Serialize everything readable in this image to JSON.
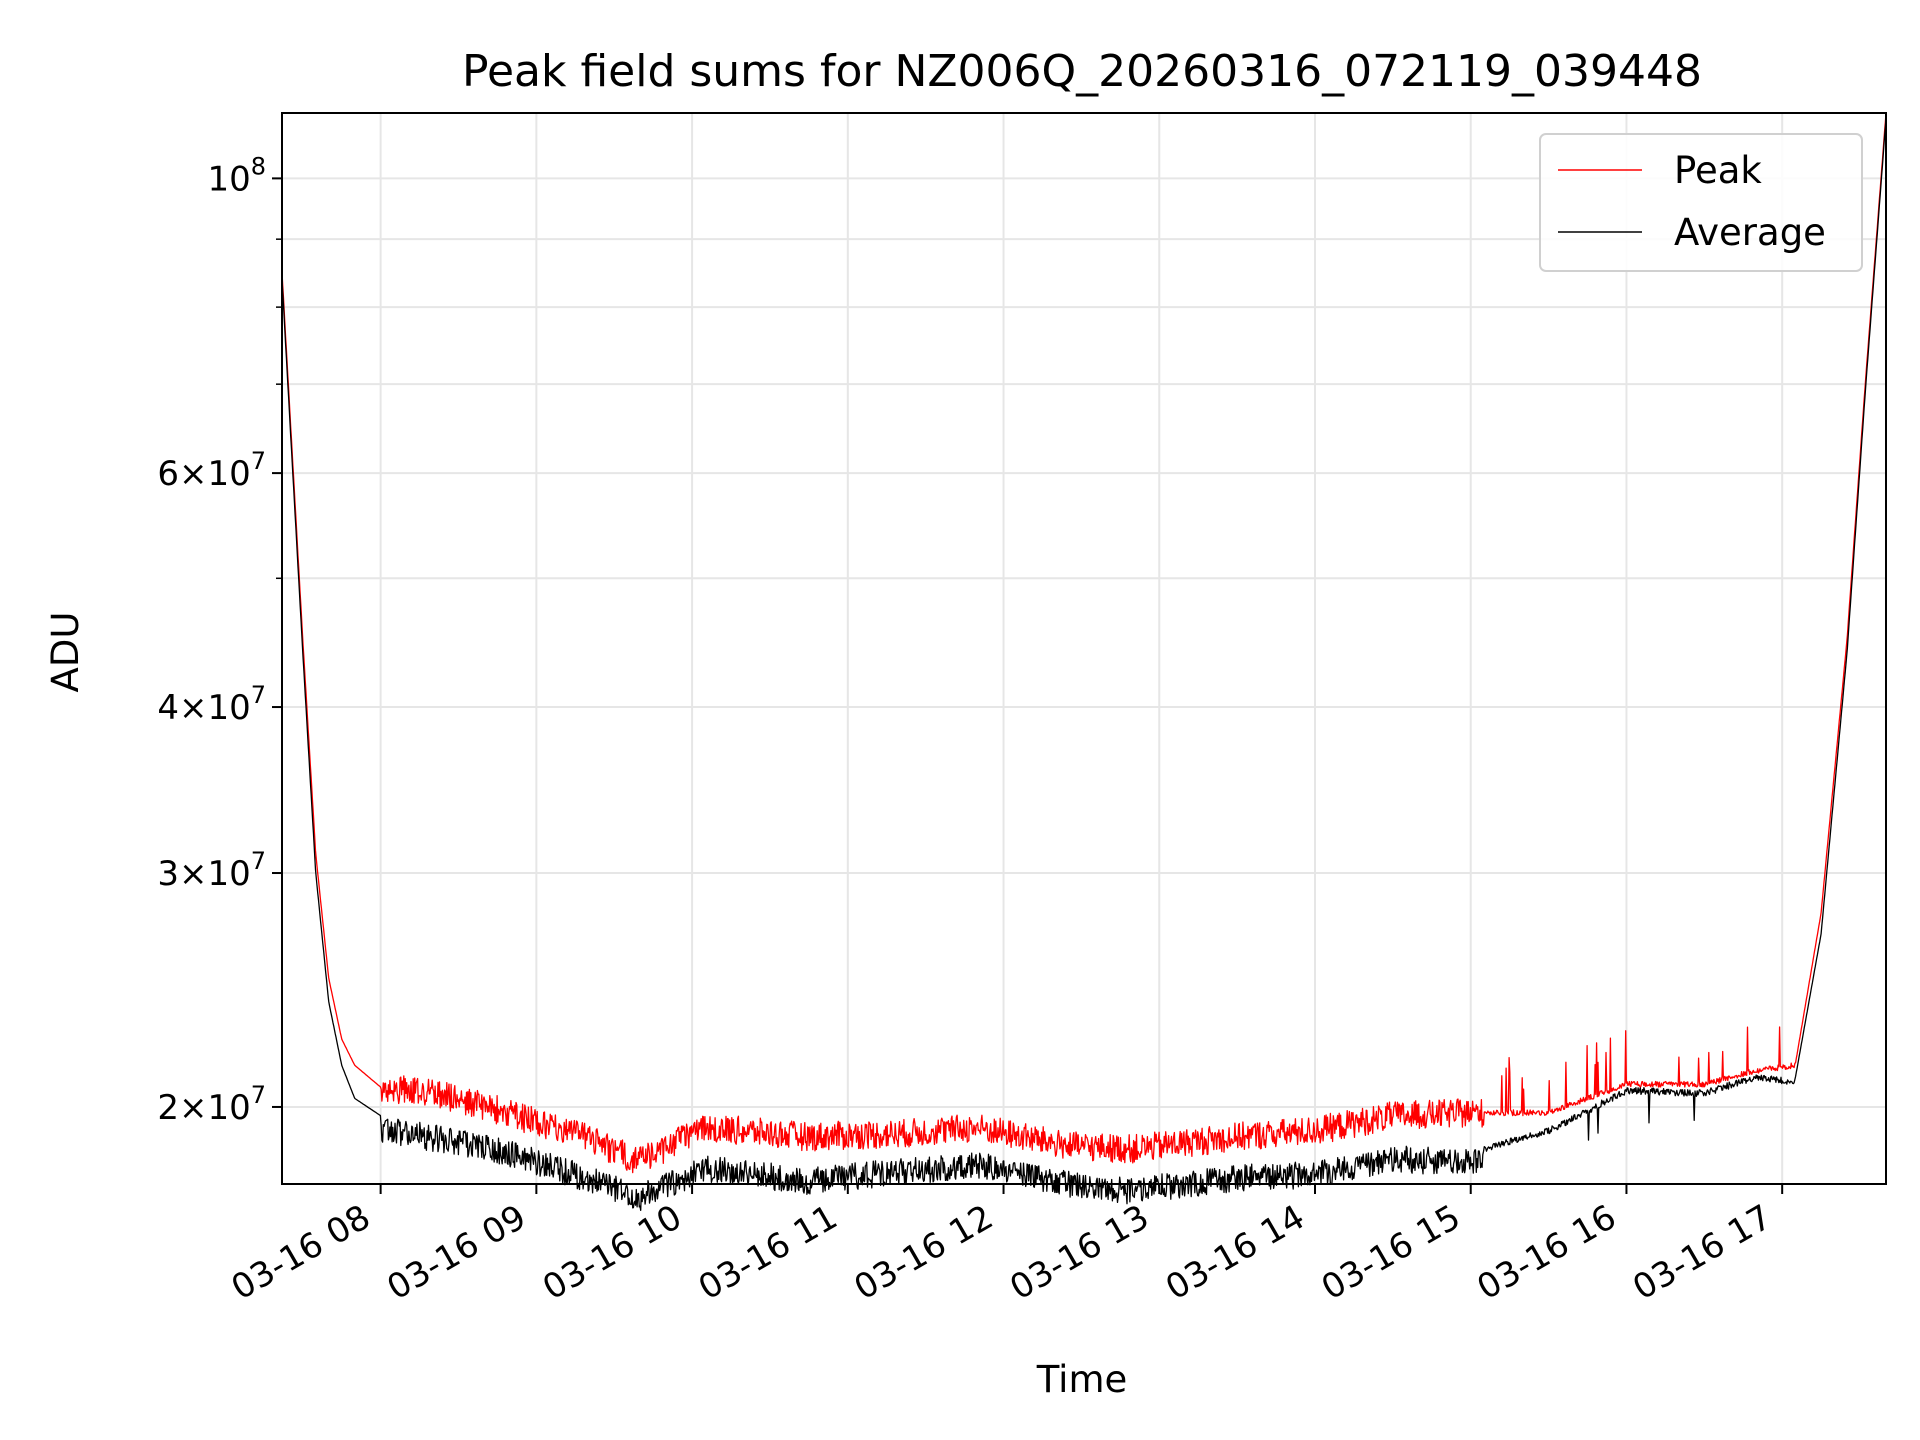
{
  "chart_data": {
    "type": "line",
    "title": "Peak field sums for NZ006Q_20260316_072119_039448",
    "xlabel": "Time",
    "ylabel": "ADU",
    "yscale": "log",
    "ylim": [
      17500000,
      112000000
    ],
    "xlim": [
      "2026-03-16 07:22",
      "2026-03-16 17:40"
    ],
    "grid": true,
    "legend": {
      "placement": "upper right",
      "entries": [
        "Peak",
        "Average"
      ]
    },
    "x_ticks": [
      "03-16 08",
      "03-16 09",
      "03-16 10",
      "03-16 11",
      "03-16 12",
      "03-16 13",
      "03-16 14",
      "03-16 15",
      "03-16 16",
      "03-16 17"
    ],
    "y_ticks": [
      {
        "value": 20000000,
        "mantissa": "2",
        "exp": "7"
      },
      {
        "value": 30000000,
        "mantissa": "3",
        "exp": "7"
      },
      {
        "value": 40000000,
        "mantissa": "4",
        "exp": "7"
      },
      {
        "value": 60000000,
        "mantissa": "6",
        "exp": "7"
      },
      {
        "value": 100000000,
        "mantissa": "",
        "exp": "8"
      }
    ],
    "y_minor_ticks": [
      50000000,
      70000000,
      80000000,
      90000000
    ],
    "series": [
      {
        "name": "Peak",
        "color": "#ff0000",
        "x": [
          "2026-03-16 07:22",
          "2026-03-16 07:30",
          "2026-03-16 07:35",
          "2026-03-16 07:40",
          "2026-03-16 07:45",
          "2026-03-16 07:50",
          "2026-03-16 08:00",
          "2026-03-16 08:20",
          "2026-03-16 08:45",
          "2026-03-16 09:15",
          "2026-03-16 09:40",
          "2026-03-16 10:05",
          "2026-03-16 10:45",
          "2026-03-16 11:20",
          "2026-03-16 11:50",
          "2026-03-16 12:25",
          "2026-03-16 12:50",
          "2026-03-16 13:30",
          "2026-03-16 14:00",
          "2026-03-16 14:30",
          "2026-03-16 15:00",
          "2026-03-16 15:30",
          "2026-03-16 16:00",
          "2026-03-16 16:30",
          "2026-03-16 16:50",
          "2026-03-16 17:05",
          "2026-03-16 17:15",
          "2026-03-16 17:25",
          "2026-03-16 17:32",
          "2026-03-16 17:40"
        ],
        "y": [
          85000000,
          45000000,
          31000000,
          25000000,
          22500000,
          21500000,
          20700000,
          20500000,
          19900000,
          19100000,
          18200000,
          19300000,
          19000000,
          19100000,
          19300000,
          18700000,
          18600000,
          19000000,
          19200000,
          19700000,
          19800000,
          19800000,
          20800000,
          20800000,
          21300000,
          21500000,
          28000000,
          45000000,
          70000000,
          112000000
        ]
      },
      {
        "name": "Average",
        "color": "#000000",
        "x": [
          "2026-03-16 07:22",
          "2026-03-16 07:30",
          "2026-03-16 07:35",
          "2026-03-16 07:40",
          "2026-03-16 07:45",
          "2026-03-16 07:50",
          "2026-03-16 08:00",
          "2026-03-16 08:20",
          "2026-03-16 08:45",
          "2026-03-16 09:15",
          "2026-03-16 09:40",
          "2026-03-16 10:05",
          "2026-03-16 10:45",
          "2026-03-16 11:20",
          "2026-03-16 11:50",
          "2026-03-16 12:25",
          "2026-03-16 12:50",
          "2026-03-16 13:30",
          "2026-03-16 14:00",
          "2026-03-16 14:30",
          "2026-03-16 15:00",
          "2026-03-16 15:30",
          "2026-03-16 16:00",
          "2026-03-16 16:30",
          "2026-03-16 16:50",
          "2026-03-16 17:05",
          "2026-03-16 17:15",
          "2026-03-16 17:25",
          "2026-03-16 17:32",
          "2026-03-16 17:40"
        ],
        "y": [
          84000000,
          44000000,
          30000000,
          24000000,
          21500000,
          20300000,
          19700000,
          19400000,
          19000000,
          18200000,
          17500000,
          18400000,
          18000000,
          18300000,
          18500000,
          17900000,
          17700000,
          18100000,
          18200000,
          18700000,
          18600000,
          19300000,
          20700000,
          20600000,
          21200000,
          21000000,
          27000000,
          44000000,
          69000000,
          111000000
        ]
      }
    ]
  }
}
